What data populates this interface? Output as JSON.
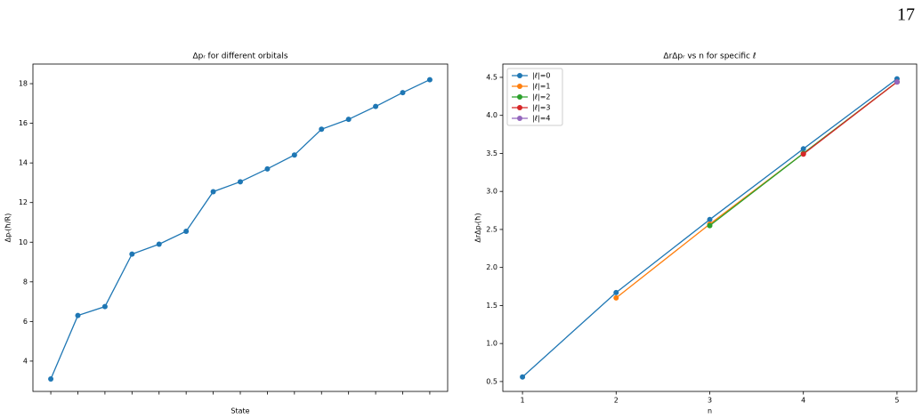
{
  "page_number": "17",
  "chart_data": [
    {
      "type": "line",
      "title": "Δpᵣ for different orbitals",
      "xlabel": "State",
      "ylabel": "Δpᵣ(ħ/R)",
      "categories": [
        null,
        null,
        null,
        null,
        null,
        null,
        null,
        null,
        null,
        null,
        null,
        null,
        null,
        null,
        null
      ],
      "values": [
        3.1,
        6.3,
        6.75,
        9.4,
        9.9,
        10.55,
        12.55,
        13.05,
        13.7,
        14.4,
        15.7,
        16.2,
        16.85,
        17.55,
        18.2
      ],
      "color": "#1f77b4",
      "ylim": [
        2.47,
        18.99
      ],
      "yticks": [
        4,
        6,
        8,
        10,
        12,
        14,
        16,
        18
      ],
      "grid": false
    },
    {
      "type": "line",
      "title": "ΔrΔpᵣ vs n for specific ℓ",
      "xlabel": "n",
      "ylabel": "ΔrΔpᵣ(ħ)",
      "xlim": [
        0.79,
        5.21
      ],
      "xticks": [
        1,
        2,
        3,
        4,
        5
      ],
      "ylim": [
        0.37,
        4.675
      ],
      "yticks": [
        0.5,
        1.0,
        1.5,
        2.0,
        2.5,
        3.0,
        3.5,
        4.0,
        4.5
      ],
      "grid": false,
      "legend": "upper left",
      "series": [
        {
          "name": "|ℓ|=0",
          "color": "#1f77b4",
          "x": [
            1,
            2,
            3,
            4,
            5
          ],
          "values": [
            0.56,
            1.67,
            2.63,
            3.56,
            4.48
          ]
        },
        {
          "name": "|ℓ|=1",
          "color": "#ff7f0e",
          "x": [
            2,
            3,
            4,
            5
          ],
          "values": [
            1.6,
            2.57,
            3.5,
            4.44
          ]
        },
        {
          "name": "|ℓ|=2",
          "color": "#2ca02c",
          "x": [
            3,
            4,
            5
          ],
          "values": [
            2.55,
            3.5,
            4.44
          ]
        },
        {
          "name": "|ℓ|=3",
          "color": "#d62728",
          "x": [
            4,
            5
          ],
          "values": [
            3.49,
            4.44
          ]
        },
        {
          "name": "|ℓ|=4",
          "color": "#9467bd",
          "x": [
            5
          ],
          "values": [
            4.44
          ]
        }
      ]
    }
  ]
}
